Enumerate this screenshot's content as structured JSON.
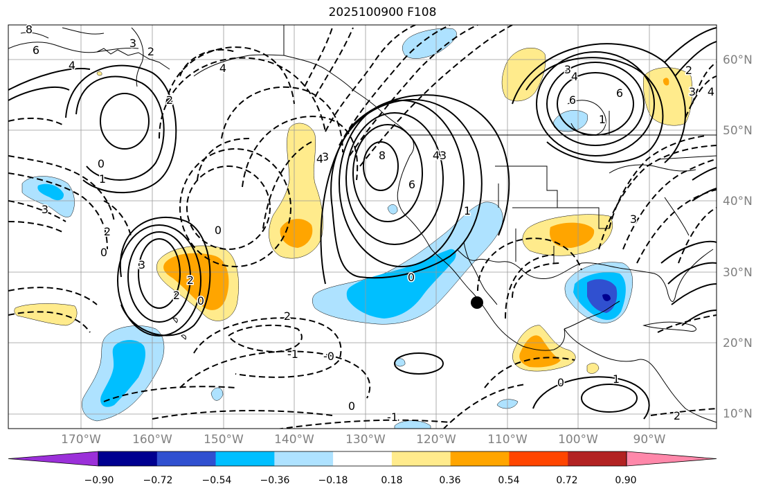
{
  "title": "2025100900 F108",
  "lat_labels": [
    "60°N",
    "50°N",
    "40°N",
    "30°N",
    "20°N",
    "10°N"
  ],
  "lon_labels": [
    "170°W",
    "160°W",
    "150°W",
    "140°W",
    "130°W",
    "120°W",
    "110°W",
    "100°W",
    "90°W"
  ],
  "colorbar": {
    "ticks": [
      "−0.90",
      "−0.72",
      "−0.54",
      "−0.36",
      "−0.18",
      "0.18",
      "0.36",
      "0.54",
      "0.72",
      "0.90"
    ],
    "colors": [
      "#9b30d9",
      "#000090",
      "#3050d0",
      "#00bfff",
      "#aee2ff",
      "#ffffff",
      "#ffeb8c",
      "#ffa500",
      "#ff4500",
      "#b22222",
      "#ff88aa"
    ]
  },
  "contour_labels": [
    {
      "text": "8"
    },
    {
      "text": "6"
    },
    {
      "text": "4"
    },
    {
      "text": "3"
    },
    {
      "text": "2"
    },
    {
      "text": "4"
    },
    {
      "text": "2"
    },
    {
      "text": "0"
    },
    {
      "text": "1"
    },
    {
      "text": "3"
    },
    {
      "text": "2"
    },
    {
      "text": "0"
    },
    {
      "text": "3"
    },
    {
      "text": "2"
    },
    {
      "text": "2"
    },
    {
      "text": "0"
    },
    {
      "text": "3"
    },
    {
      "text": "4"
    },
    {
      "text": "6"
    },
    {
      "text": "1"
    },
    {
      "text": "8"
    },
    {
      "text": "6"
    },
    {
      "text": "4"
    },
    {
      "text": "3"
    },
    {
      "text": "1"
    },
    {
      "text": "0"
    },
    {
      "text": "-0"
    },
    {
      "text": "2"
    },
    {
      "text": "-1"
    },
    {
      "text": "0"
    },
    {
      "text": "-1"
    },
    {
      "text": "0"
    },
    {
      "text": "1"
    },
    {
      "text": "3"
    },
    {
      "text": "4"
    },
    {
      "text": "6"
    },
    {
      "text": "2"
    },
    {
      "text": "3"
    },
    {
      "text": "4"
    },
    {
      "text": "3"
    },
    {
      "text": "0"
    },
    {
      "text": "2"
    }
  ]
}
